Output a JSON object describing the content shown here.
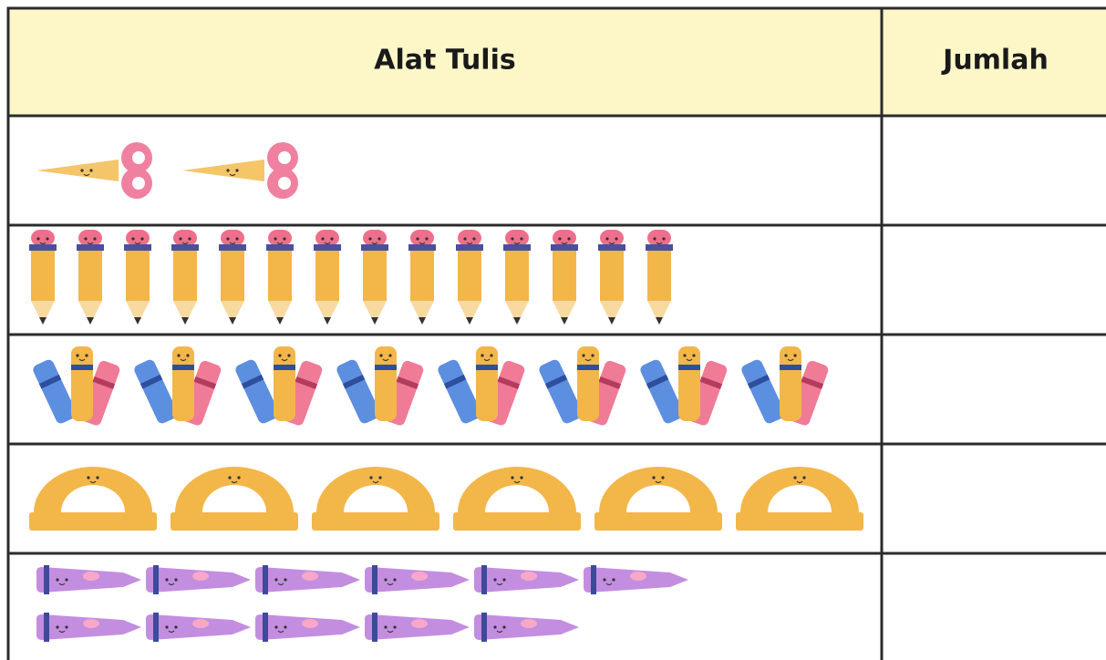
{
  "header": {
    "title": "Alat Tulis",
    "count_title": "Jumlah"
  },
  "rows": [
    {
      "count": 2
    },
    {
      "count": 14
    },
    {
      "count": 8
    },
    {
      "count": 6
    },
    {
      "count": 11
    }
  ]
}
